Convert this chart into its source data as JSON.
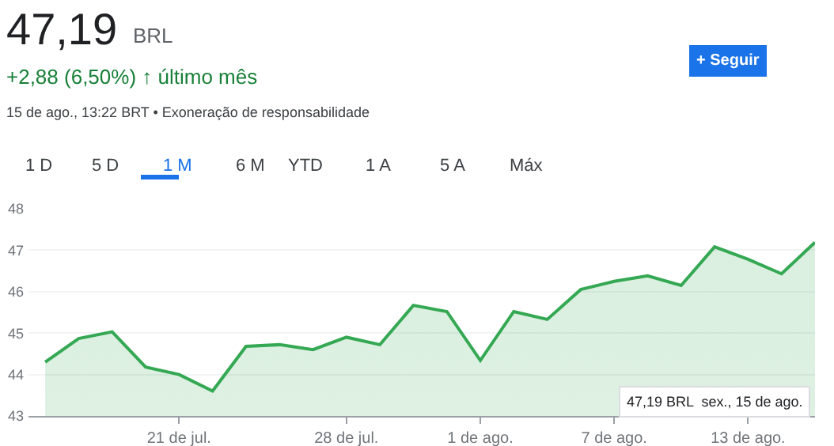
{
  "chart_data": {
    "type": "area",
    "title": "47,19",
    "annotations": [
      "BRL",
      "+2,88 (6,50%) ↑ último mês",
      "15 de ago., 13:22 BRT • Exoneração de responsabilidade",
      "+ Seguir",
      "1 D",
      "5 D",
      "1 M",
      "6 M",
      "YTD",
      "1 A",
      "5 A",
      "Máx",
      "47,19 BRL  sex., 15 de ago."
    ],
    "categories": [
      null,
      null,
      null,
      null,
      "21 de jul.",
      null,
      null,
      null,
      null,
      "28 de jul.",
      null,
      null,
      null,
      "1 de ago.",
      null,
      null,
      null,
      "7 de ago.",
      null,
      null,
      null,
      "13 de ago.",
      null,
      null
    ],
    "series": [
      {
        "color": "#34a853",
        "values": [
          44.3,
          44.87,
          45.03,
          44.18,
          44.0,
          43.6,
          44.68,
          44.72,
          44.6,
          44.9,
          44.72,
          45.67,
          45.52,
          44.34,
          45.52,
          45.33,
          46.05,
          46.25,
          46.38,
          46.15,
          47.08,
          46.78,
          46.43,
          47.19
        ]
      }
    ],
    "ylim": [
      43,
      48
    ],
    "yticks": [
      43,
      44,
      45,
      46,
      47,
      48
    ],
    "grid": "y",
    "legend": false,
    "marker": "none",
    "line_style": "solid"
  }
}
